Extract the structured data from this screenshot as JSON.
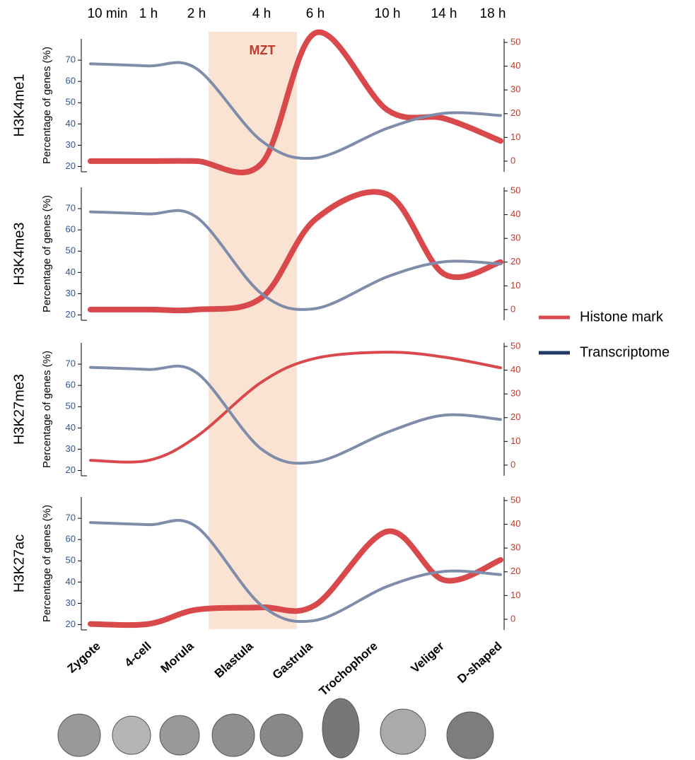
{
  "x_axis": {
    "time_labels": [
      "10 min",
      "1 h",
      "2 h",
      "4 h",
      "6 h",
      "10 h",
      "14 h",
      "18 h"
    ],
    "stage_labels": [
      "Zygote",
      "4-cell",
      "Morula",
      "Blastula",
      "Gastrula",
      "Trochophore",
      "Veliger",
      "D-shaped"
    ]
  },
  "annotation": "MZT",
  "legend": [
    {
      "name": "Histone mark",
      "color": "#d9494c"
    },
    {
      "name": "Transcriptome",
      "color": "#1f3864"
    }
  ],
  "chart_data": [
    {
      "type": "line",
      "panel_label": "H3K4me1",
      "y_label": "Percentage of genes (%)",
      "ylim": [
        17.5,
        80
      ],
      "yticks": [
        20,
        30,
        40,
        50,
        60,
        70
      ],
      "y2lim": [
        -4.5,
        51.5
      ],
      "y2ticks": [
        0,
        10,
        20,
        30,
        40,
        50
      ],
      "series": [
        {
          "color": "#d9494c",
          "axis": "y2",
          "values": [
            0,
            0,
            0,
            -1,
            54,
            21.5,
            18,
            8.5
          ]
        },
        {
          "color": "#7f8daa",
          "values": [
            68.3,
            67.3,
            66,
            32,
            24,
            38,
            45,
            44
          ]
        }
      ]
    },
    {
      "type": "line",
      "panel_label": "H3K4me3",
      "y_label": "Percentage of genes (%)",
      "ylim": [
        17.5,
        80
      ],
      "yticks": [
        20,
        30,
        40,
        50,
        60,
        70
      ],
      "y2lim": [
        -4.5,
        51.5
      ],
      "y2ticks": [
        0,
        10,
        20,
        30,
        40,
        50
      ],
      "series": [
        {
          "color": "#d9494c",
          "axis": "y2",
          "values": [
            0,
            0,
            0,
            5,
            38,
            48.5,
            15,
            20
          ]
        },
        {
          "color": "#7f8daa",
          "values": [
            68.5,
            67.5,
            66,
            30,
            23,
            38,
            45,
            44
          ]
        }
      ]
    },
    {
      "type": "line",
      "panel_label": "H3K27me3",
      "y_label": "Percentage of genes (%)",
      "ylim": [
        17.5,
        80
      ],
      "yticks": [
        20,
        30,
        40,
        50,
        60,
        70
      ],
      "y2lim": [
        -4.5,
        51.5
      ],
      "y2ticks": [
        0,
        10,
        20,
        30,
        40,
        50
      ],
      "series": [
        {
          "color": "#d9494c",
          "axis": "y2",
          "values": [
            2,
            2,
            12,
            35,
            45,
            47.6,
            45.5,
            41
          ]
        },
        {
          "color": "#7f8daa",
          "values": [
            68.5,
            67.5,
            66,
            30,
            24,
            38,
            46,
            44
          ]
        }
      ]
    },
    {
      "type": "line",
      "panel_label": "H3K27ac",
      "y_label": "Percentage of genes (%)",
      "ylim": [
        17.5,
        80
      ],
      "yticks": [
        20,
        30,
        40,
        50,
        60,
        70
      ],
      "y2lim": [
        -4.5,
        51.5
      ],
      "y2ticks": [
        0,
        10,
        20,
        30,
        40,
        50
      ],
      "series": [
        {
          "color": "#d9494c",
          "axis": "y2",
          "values": [
            -2,
            -2,
            4,
            5,
            6,
            37,
            16.5,
            25
          ]
        },
        {
          "color": "#7f8daa",
          "values": [
            68,
            67,
            66,
            29,
            22,
            38,
            45,
            43.5
          ]
        }
      ]
    }
  ]
}
